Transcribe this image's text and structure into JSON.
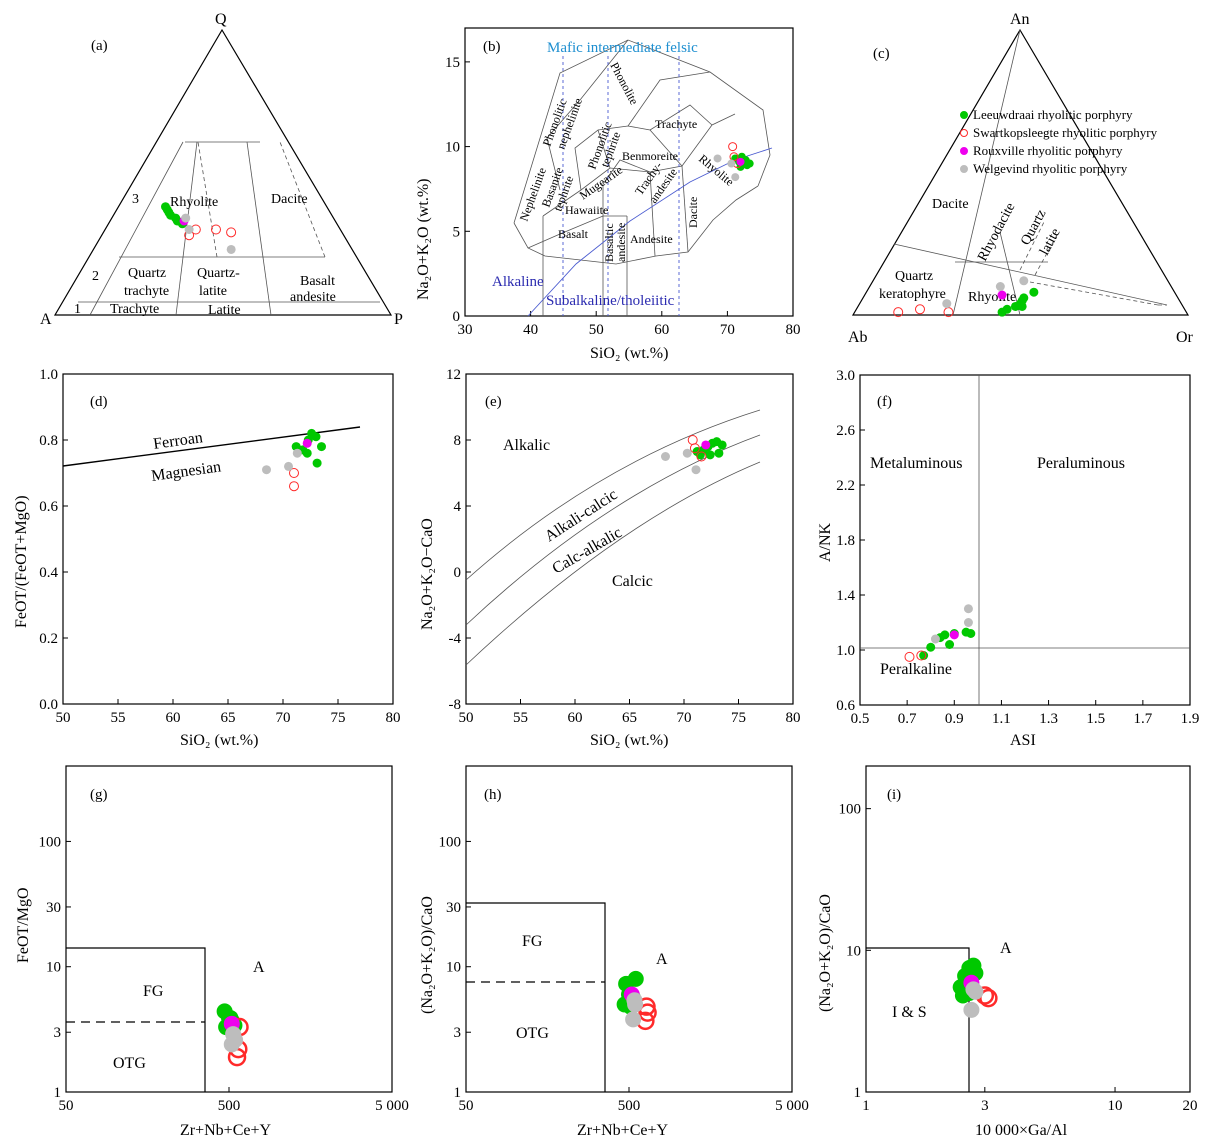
{
  "colors": {
    "leeuwdraai": "#00c800",
    "swartkopsleegte": "#ff2a2a",
    "rouxville": "#ee00ee",
    "welgevind": "#bdbdbd",
    "blue_lines": "#4a5bd0",
    "mafic_text": "#1e8fd0"
  },
  "legend": [
    {
      "label": "Leeuwdraai rhyolitic porphyry",
      "marker": "filled-circle",
      "color": "#00c800"
    },
    {
      "label": "Swartkopsleegte rhyolitic porphyry",
      "marker": "open-circle",
      "color": "#ff2a2a"
    },
    {
      "label": "Rouxville rhyolitic porphyry",
      "marker": "filled-circle",
      "color": "#ee00ee"
    },
    {
      "label": "Welgevind rhyolitic porphyry",
      "marker": "filled-circle",
      "color": "#bdbdbd"
    }
  ],
  "panels": {
    "a": {
      "label": "(a)",
      "vertices": {
        "top": "Q",
        "left": "A",
        "right": "P"
      },
      "fields": {
        "n1": "1",
        "n2": "2",
        "n3": "3",
        "rhyolite": "Rhyolite",
        "dacite": "Dacite",
        "quartz": "Quartz",
        "trachyte_q": "trachyte",
        "quartz_latite_1": "Quartz-",
        "quartz_latite_2": "latite",
        "basalt": "Basalt",
        "andesite": "andesite",
        "trachyte": "Trachyte",
        "latite": "Latite"
      }
    },
    "b": {
      "label": "(b)",
      "xlabel": "SiO₂ (wt.%)",
      "ylabel": "Na₂O+K₂O (wt.%)",
      "header": "Mafic intermediate felsic",
      "alkaline": "Alkaline",
      "subalkaline": "Subalkaline/tholeiitic",
      "fields": {
        "phonolite": "Phonolite",
        "phon_neph_1": "Phonolitic",
        "phon_neph_2": "nephelinite",
        "phon_teph_1": "Phonolitic",
        "phon_teph_2": "tephrite",
        "trachyte": "Trachyte",
        "rhyolite": "Rhyolite",
        "benmoreite": "Benmoreite",
        "mugearite": "Mugearite",
        "trachy_and_1": "Trachy-",
        "trachy_and_2": "andesite",
        "hawaiite": "Hawaiite",
        "basalt": "Basalt",
        "andesite": "Andesite",
        "basaltic_1": "Basaltic",
        "basaltic_2": "andesite",
        "dacite": "Dacite",
        "nephelinite": "Nephelinite",
        "basanite_1": "Basanite",
        "basanite_2": "tephrite"
      }
    },
    "c": {
      "label": "(c)",
      "vertices": {
        "top": "An",
        "left": "Ab",
        "right": "Or"
      },
      "fields": {
        "dacite": "Dacite",
        "rhyodacite": "Rhyodacite",
        "quartz_latite_1": "Quartz",
        "quartz_latite_2": "latite",
        "qk_1": "Quartz",
        "qk_2": "keratophyre",
        "rhyolite": "Rhyolite"
      }
    },
    "d": {
      "label": "(d)",
      "xlabel": "SiO₂ (wt.%)",
      "ylabel": "FeOT/(FeOT+MgO)",
      "ferroan": "Ferroan",
      "magnesian": "Magnesian"
    },
    "e": {
      "label": "(e)",
      "xlabel": "SiO₂ (wt.%)",
      "ylabel": "Na₂O+K₂O−CaO",
      "alkalic": "Alkalic",
      "alkali_calcic": "Alkali-calcic",
      "calc_alkalic": "Calc-alkalic",
      "calcic": "Calcic"
    },
    "f": {
      "label": "(f)",
      "xlabel": "ASI",
      "ylabel": "A/NK",
      "metaluminous": "Metaluminous",
      "peraluminous": "Peraluminous",
      "peralkaline": "Peralkaline"
    },
    "g": {
      "label": "(g)",
      "xlabel": "Zr+Nb+Ce+Y",
      "ylabel": "FeOT/MgO",
      "fg": "FG",
      "otg": "OTG",
      "a": "A"
    },
    "h": {
      "label": "(h)",
      "xlabel": "Zr+Nb+Ce+Y",
      "ylabel": "(Na₂O+K₂O)/CaO",
      "fg": "FG",
      "otg": "OTG",
      "a": "A"
    },
    "i": {
      "label": "(i)",
      "xlabel": "10 000×Ga/Al",
      "ylabel": "(Na₂O+K₂O)/CaO",
      "is": "I & S",
      "a": "A"
    }
  },
  "chart_data": [
    {
      "panel": "a",
      "type": "scatter",
      "ternary": true,
      "axes": [
        "Q",
        "A",
        "P"
      ],
      "series": [
        {
          "name": "Leeuwdraai rhyolitic porphyry",
          "points": [
            [
              0.38,
              0.48,
              0.14
            ],
            [
              0.37,
              0.48,
              0.15
            ],
            [
              0.36,
              0.48,
              0.16
            ],
            [
              0.35,
              0.48,
              0.17
            ],
            [
              0.34,
              0.47,
              0.19
            ],
            [
              0.33,
              0.47,
              0.2
            ],
            [
              0.32,
              0.46,
              0.22
            ]
          ]
        },
        {
          "name": "Swartkopsleegte rhyolitic porphyry",
          "points": [
            [
              0.3,
              0.43,
              0.27
            ],
            [
              0.3,
              0.37,
              0.33
            ],
            [
              0.29,
              0.33,
              0.38
            ],
            [
              0.28,
              0.46,
              0.26
            ]
          ]
        },
        {
          "name": "Rouxville rhyolitic porphyry",
          "points": [
            [
              0.33,
              0.45,
              0.22
            ]
          ]
        },
        {
          "name": "Welgevind rhyolitic porphyry",
          "points": [
            [
              0.34,
              0.44,
              0.22
            ],
            [
              0.3,
              0.45,
              0.25
            ],
            [
              0.23,
              0.36,
              0.41
            ]
          ]
        }
      ]
    },
    {
      "panel": "b",
      "type": "scatter",
      "xlim": [
        30,
        80
      ],
      "ylim": [
        0,
        17
      ],
      "series": [
        {
          "name": "Leeuwdraai rhyolitic porphyry",
          "x": [
            71.2,
            71.8,
            72.2,
            72.6,
            73.0,
            73.4,
            72.0,
            72.8
          ],
          "y": [
            9.3,
            9.1,
            9.4,
            9.0,
            8.9,
            9.0,
            8.8,
            9.2
          ]
        },
        {
          "name": "Swartkopsleegte rhyolitic porphyry",
          "x": [
            70.8,
            71.0,
            71.5
          ],
          "y": [
            10.0,
            9.4,
            9.0
          ]
        },
        {
          "name": "Rouxville rhyolitic porphyry",
          "x": [
            72.0
          ],
          "y": [
            9.1
          ]
        },
        {
          "name": "Welgevind rhyolitic porphyry",
          "x": [
            68.5,
            70.6,
            71.2
          ],
          "y": [
            9.3,
            9.0,
            8.2
          ]
        }
      ]
    },
    {
      "panel": "c",
      "type": "scatter",
      "ternary": true,
      "axes": [
        "An",
        "Ab",
        "Or"
      ],
      "series": [
        {
          "name": "Leeuwdraai rhyolitic porphyry",
          "points": [
            [
              0.01,
              0.55,
              0.44
            ],
            [
              0.02,
              0.53,
              0.45
            ],
            [
              0.03,
              0.5,
              0.47
            ],
            [
              0.04,
              0.48,
              0.48
            ],
            [
              0.05,
              0.47,
              0.48
            ],
            [
              0.06,
              0.46,
              0.48
            ],
            [
              0.08,
              0.42,
              0.5
            ],
            [
              0.03,
              0.48,
              0.49
            ]
          ]
        },
        {
          "name": "Swartkopsleegte rhyolitic porphyry",
          "points": [
            [
              0.01,
              0.86,
              0.13
            ],
            [
              0.02,
              0.79,
              0.19
            ],
            [
              0.01,
              0.71,
              0.28
            ]
          ]
        },
        {
          "name": "Rouxville rhyolitic porphyry",
          "points": [
            [
              0.07,
              0.52,
              0.41
            ]
          ]
        },
        {
          "name": "Welgevind rhyolitic porphyry",
          "points": [
            [
              0.12,
              0.43,
              0.45
            ],
            [
              0.1,
              0.51,
              0.39
            ],
            [
              0.04,
              0.7,
              0.26
            ]
          ]
        }
      ]
    },
    {
      "panel": "d",
      "type": "scatter",
      "xlim": [
        50,
        80
      ],
      "ylim": [
        0,
        1
      ],
      "series": [
        {
          "name": "Leeuwdraai rhyolitic porphyry",
          "x": [
            71.2,
            71.8,
            72.3,
            72.6,
            73.0,
            73.5,
            72.2,
            73.1
          ],
          "y": [
            0.78,
            0.77,
            0.8,
            0.82,
            0.81,
            0.78,
            0.76,
            0.73
          ]
        },
        {
          "name": "Swartkopsleegte rhyolitic porphyry",
          "x": [
            71.0,
            71.0
          ],
          "y": [
            0.7,
            0.66
          ]
        },
        {
          "name": "Rouxville rhyolitic porphyry",
          "x": [
            72.2
          ],
          "y": [
            0.79
          ]
        },
        {
          "name": "Welgevind rhyolitic porphyry",
          "x": [
            68.5,
            70.5,
            71.3
          ],
          "y": [
            0.71,
            0.72,
            0.76
          ]
        }
      ]
    },
    {
      "panel": "e",
      "type": "scatter",
      "xlim": [
        50,
        80
      ],
      "ylim": [
        -8,
        12
      ],
      "series": [
        {
          "name": "Leeuwdraai rhyolitic porphyry",
          "x": [
            71.2,
            71.8,
            72.2,
            72.6,
            73.0,
            73.5,
            71.5,
            72.4,
            73.2
          ],
          "y": [
            7.3,
            7.4,
            7.6,
            7.8,
            7.9,
            7.7,
            7.1,
            7.1,
            7.2
          ]
        },
        {
          "name": "Swartkopsleegte rhyolitic porphyry",
          "x": [
            70.8,
            71.0,
            71.6
          ],
          "y": [
            8.0,
            7.5,
            7.0
          ]
        },
        {
          "name": "Rouxville rhyolitic porphyry",
          "x": [
            72.0
          ],
          "y": [
            7.7
          ]
        },
        {
          "name": "Welgevind rhyolitic porphyry",
          "x": [
            68.3,
            70.3,
            71.1
          ],
          "y": [
            7.0,
            7.2,
            6.2
          ]
        }
      ]
    },
    {
      "panel": "f",
      "type": "scatter",
      "xlim": [
        0.5,
        1.9
      ],
      "ylim": [
        0.6,
        3.0
      ],
      "series": [
        {
          "name": "Leeuwdraai rhyolitic porphyry",
          "x": [
            0.77,
            0.8,
            0.84,
            0.86,
            0.88,
            0.9,
            0.95,
            0.97
          ],
          "y": [
            0.96,
            1.02,
            1.09,
            1.11,
            1.04,
            1.12,
            1.13,
            1.12
          ]
        },
        {
          "name": "Swartkopsleegte rhyolitic porphyry",
          "x": [
            0.71,
            0.76
          ],
          "y": [
            0.95,
            0.96
          ]
        },
        {
          "name": "Rouxville rhyolitic porphyry",
          "x": [
            0.9
          ],
          "y": [
            1.11
          ]
        },
        {
          "name": "Welgevind rhyolitic porphyry",
          "x": [
            0.82,
            0.96,
            0.96
          ],
          "y": [
            1.08,
            1.2,
            1.3
          ]
        }
      ]
    },
    {
      "panel": "g",
      "type": "scatter",
      "xscale": "log",
      "yscale": "log",
      "xlim": [
        50,
        5000
      ],
      "ylim": [
        1,
        400
      ],
      "series": [
        {
          "name": "Leeuwdraai rhyolitic porphyry",
          "x": [
            470,
            500,
            520,
            540,
            480,
            510
          ],
          "y": [
            4.4,
            3.9,
            3.7,
            3.4,
            3.3,
            3.9
          ]
        },
        {
          "name": "Swartkopsleegte rhyolitic porphyry",
          "x": [
            580,
            570,
            560
          ],
          "y": [
            3.3,
            2.2,
            1.9
          ]
        },
        {
          "name": "Rouxville rhyolitic porphyry",
          "x": [
            520
          ],
          "y": [
            3.5
          ]
        },
        {
          "name": "Welgevind rhyolitic porphyry",
          "x": [
            530,
            545,
            520
          ],
          "y": [
            2.9,
            2.6,
            2.4
          ]
        }
      ]
    },
    {
      "panel": "h",
      "type": "scatter",
      "xscale": "log",
      "yscale": "log",
      "xlim": [
        50,
        5000
      ],
      "ylim": [
        1,
        400
      ],
      "series": [
        {
          "name": "Leeuwdraai rhyolitic porphyry",
          "x": [
            480,
            500,
            530,
            550,
            470,
            510
          ],
          "y": [
            7.3,
            6.0,
            5.6,
            8.0,
            5.0,
            4.8
          ]
        },
        {
          "name": "Swartkopsleegte rhyolitic porphyry",
          "x": [
            640,
            650,
            630
          ],
          "y": [
            4.8,
            4.3,
            3.7
          ]
        },
        {
          "name": "Rouxville rhyolitic porphyry",
          "x": [
            520
          ],
          "y": [
            6.0
          ]
        },
        {
          "name": "Welgevind rhyolitic porphyry",
          "x": [
            540,
            530,
            545
          ],
          "y": [
            5.4,
            3.8,
            5.0
          ]
        }
      ]
    },
    {
      "panel": "i",
      "type": "scatter",
      "xscale": "log",
      "yscale": "log",
      "xlim": [
        1,
        20
      ],
      "ylim": [
        1,
        200
      ],
      "series": [
        {
          "name": "Leeuwdraai rhyolitic porphyry",
          "x": [
            2.4,
            2.5,
            2.6,
            2.7,
            2.6,
            2.45,
            2.75
          ],
          "y": [
            5.5,
            6.6,
            7.5,
            7.8,
            5.0,
            4.8,
            6.9
          ]
        },
        {
          "name": "Swartkopsleegte rhyolitic porphyry",
          "x": [
            3.0,
            3.1
          ],
          "y": [
            4.8,
            4.6
          ]
        },
        {
          "name": "Rouxville rhyolitic porphyry",
          "x": [
            2.65
          ],
          "y": [
            5.9
          ]
        },
        {
          "name": "Welgevind rhyolitic porphyry",
          "x": [
            2.7,
            2.65,
            2.75
          ],
          "y": [
            5.3,
            3.8,
            5.1
          ]
        }
      ]
    }
  ]
}
